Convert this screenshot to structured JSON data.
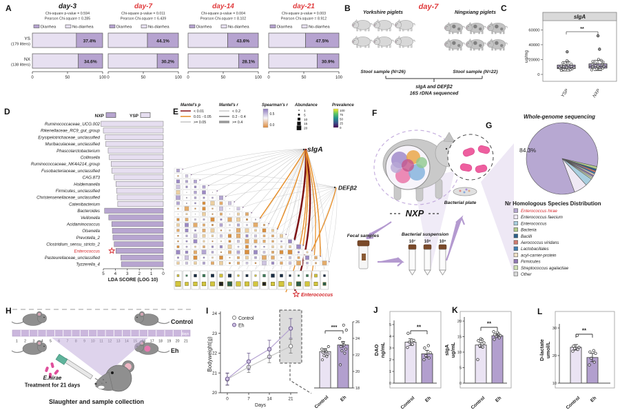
{
  "panel_labels": [
    "A",
    "B",
    "C",
    "D",
    "E",
    "F",
    "G",
    "H",
    "I",
    "J",
    "K",
    "L"
  ],
  "panel_b": {
    "title": "day-7",
    "left_group": "Yorkshire piglets",
    "right_group": "Ningxiang piglets",
    "left_sample": "Stool sample (N=26)",
    "right_sample": "Stool sample (N=22)",
    "assay_line1": "sIgA and DEFβ2",
    "assay_line2": "16S rDNA sequenced"
  },
  "panel_f": {
    "group_label": "NXP",
    "fecal_label": "Fecal samples",
    "suspension_label": "Bacterial suspension",
    "dilutions": [
      "10⁷",
      "10⁸",
      "10⁹"
    ],
    "plate_label": "Bacterial plate"
  },
  "panel_h": {
    "top_group": "Control",
    "bottom_group": "Eh",
    "days_label": "days",
    "day_numbers": [
      "1",
      "2",
      "3",
      "4",
      "5",
      "6",
      "7",
      "8",
      "9",
      "10",
      "11",
      "12",
      "13",
      "14",
      "15",
      "16",
      "17",
      "18",
      "19",
      "20",
      "21"
    ],
    "treatment_name": "E.hirae",
    "treatment_text": "Treatment for 21 days",
    "caption": "Slaughter and sample collection"
  },
  "chart_data": [
    {
      "panel": "A",
      "type": "bar",
      "subtype": "stacked_percent_horizontal",
      "legend": [
        "Diarrhea",
        "No-diarrhea"
      ],
      "colors": {
        "diarrhea": "#b6a3d0",
        "no_diarrhea": "#e7e0f1"
      },
      "row_labels": [
        [
          "YS",
          "(179 litters)"
        ],
        [
          "NX",
          "(138 litters)"
        ]
      ],
      "x_ticks": [
        "0",
        "50",
        "100"
      ],
      "charts": [
        {
          "title": "day-3",
          "title_color": "#1a1a1a",
          "stats": [
            "Chi-square p-value = 0.594",
            "Pearson Chi-square = 0.285"
          ],
          "diarrhea_pct": [
            37.4,
            34.6
          ],
          "labels": [
            "37.4%",
            "34.6%"
          ]
        },
        {
          "title": "day-7",
          "title_color": "#e03a3c",
          "stats": [
            "Chi-square p-value = 0.011",
            "Pearson Chi-square = 6.439"
          ],
          "diarrhea_pct": [
            44.1,
            30.2
          ],
          "labels": [
            "44.1%",
            "30.2%"
          ]
        },
        {
          "title": "day-14",
          "title_color": "#e03a3c",
          "stats": [
            "Chi-square p-value = 0.004",
            "Pearson Chi-square = 8.102"
          ],
          "diarrhea_pct": [
            43.6,
            28.1
          ],
          "labels": [
            "43.6%",
            "28.1%"
          ]
        },
        {
          "title": "day-21",
          "title_color": "#e03a3c",
          "stats": [
            "Chi-square p-value = 0.003",
            "Pearson Chi-square = 8.912"
          ],
          "diarrhea_pct": [
            47.5,
            30.9
          ],
          "labels": [
            "47.5%",
            "30.9%"
          ]
        }
      ]
    },
    {
      "panel": "C",
      "type": "box",
      "title": "sIgA",
      "ylabel": "ug/mg",
      "yticks": [
        0,
        20000,
        40000,
        60000
      ],
      "ylim": [
        0,
        65000
      ],
      "categories": [
        "YSP",
        "NXP"
      ],
      "significance": "**",
      "box_color": "#b3a2ce",
      "boxes": [
        {
          "lo": 4600,
          "q1": 7800,
          "median": 9600,
          "q3": 12600,
          "hi": 17000,
          "outliers": [
            30500
          ],
          "points": [
            5500,
            6500,
            7000,
            7500,
            8000,
            8200,
            8600,
            9000,
            9300,
            9800,
            10200,
            10800,
            11500,
            12500,
            13000,
            14000,
            15500,
            17000,
            18500
          ]
        },
        {
          "lo": 5200,
          "q1": 8600,
          "median": 11000,
          "q3": 14200,
          "hi": 19000,
          "outliers": [
            34000,
            52000
          ],
          "points": [
            6000,
            7000,
            7800,
            8300,
            8800,
            9200,
            9700,
            10300,
            10800,
            11300,
            12000,
            12800,
            13500,
            14500,
            15500,
            16500,
            17500,
            19000,
            20500
          ]
        }
      ]
    },
    {
      "panel": "D",
      "type": "bar",
      "orientation": "horizontal_reversed",
      "xlabel": "LDA SCORE (LOG 10)",
      "xticks": [
        "5",
        "4",
        "3",
        "2",
        "1",
        "0"
      ],
      "legend": [
        {
          "label": "NXP",
          "color": "#b7a5d0"
        },
        {
          "label": "YSP",
          "color": "#e6def0"
        }
      ],
      "highlight_color": "#d4262a",
      "items": [
        [
          "Ruminococcaceae_UCG.002",
          "YSP",
          5.2
        ],
        [
          "Rikenellaceae_RC9_gut_group",
          "YSP",
          5.0
        ],
        [
          "Erysipelotrichaceae_unclassified",
          "YSP",
          4.85
        ],
        [
          "Muribaculaceae_unclassified",
          "YSP",
          4.8
        ],
        [
          "Phascolarctobacterium",
          "YSP",
          4.6
        ],
        [
          "Collinsella",
          "YSP",
          4.5
        ],
        [
          "Ruminococcaceae_NK4A214_group",
          "YSP",
          4.35
        ],
        [
          "Fusobacteriaceae_unclassified",
          "YSP",
          4.3
        ],
        [
          "CAG.873",
          "YSP",
          4.1
        ],
        [
          "Holdemanella",
          "YSP",
          3.95
        ],
        [
          "Firmicutes_unclassified",
          "YSP",
          3.9
        ],
        [
          "Christensenellaceae_unclassified",
          "YSP",
          3.85
        ],
        [
          "Catenibacterium",
          "YSP",
          3.8
        ],
        [
          "Bacteroides",
          "NXP",
          4.9
        ],
        [
          "Veillonella",
          "NXP",
          4.55
        ],
        [
          "Acidaminococcus",
          "NXP",
          4.3
        ],
        [
          "Olsenella",
          "NXP",
          4.25
        ],
        [
          "Prevotella_2",
          "NXP",
          4.2
        ],
        [
          "Clostridium_sensu_stricto_2",
          "NXP",
          4.1
        ],
        [
          "Enterococcus",
          "NXP",
          3.95,
          true
        ],
        [
          "Pasteurellaceae_unclassified",
          "NXP",
          3.55
        ],
        [
          "Tyzzerella_4",
          "NXP",
          3.5
        ]
      ]
    },
    {
      "panel": "E",
      "type": "heatmap_network",
      "n_rows": 18,
      "seed": 11,
      "nodes": [
        {
          "label": "sIgA"
        },
        {
          "label": "DEFβ2"
        }
      ],
      "star_label": "Enterococcus",
      "legend": {
        "mantel_p": {
          "title": "Mantel's p",
          "items": [
            {
              "label": "< 0.01",
              "color": "#8e1b1e"
            },
            {
              "label": "0.01 - 0.05",
              "color": "#e8912d"
            },
            {
              "label": ">= 0.05",
              "color": "#c8c8c8"
            }
          ]
        },
        "mantel_r": {
          "title": "Mantel's r",
          "items": [
            {
              "label": "< 0.2",
              "width": 0.8
            },
            {
              "label": "0.2 - 0.4",
              "width": 2
            },
            {
              "label": ">= 0.4",
              "width": 3.6
            }
          ]
        },
        "spearman": {
          "title": "Spearman's r",
          "ticks": [
            "0.5",
            "0.0"
          ],
          "colors": [
            "#8f7cbf",
            "#f7f5f9",
            "#dd8a3c"
          ]
        },
        "abundance": {
          "title": "Abundance",
          "ticks": [
            "1",
            "5",
            "10",
            "15",
            "20"
          ]
        },
        "prevalence": {
          "title": "Prevalence",
          "ticks": [
            "100",
            "75",
            "50",
            "25",
            "0"
          ],
          "colors": [
            "#fde725",
            "#5ec962",
            "#21918c",
            "#3b528b",
            "#440154"
          ]
        }
      },
      "cell_colors": {
        "positive": [
          "#9b89c4",
          "#b3a5d2",
          "#cdc3e0"
        ],
        "negative": [
          "#d98f3e",
          "#e3ab6a",
          "#eccfa0"
        ]
      }
    },
    {
      "panel": "G",
      "type": "pie",
      "title": "Whole-genome sequencing",
      "legend_title": "Nr Homologous Species Distribution",
      "main_label": "84.3%",
      "slices": [
        {
          "label": "Enterococcus hirae",
          "value": 84.3,
          "color": "#b7a8d2",
          "label_color": "#d4262a"
        },
        {
          "label": "Enterococcus faecium",
          "value": 6.0,
          "color": "#efe9f4",
          "label_color": "#1a1a1a"
        },
        {
          "label": "Enterococcus",
          "value": 3.5,
          "color": "#a9cfdf",
          "label_color": "#1a1a1a"
        },
        {
          "label": "Bacteria",
          "value": 1.2,
          "color": "#b3cc8b",
          "label_color": "#1a1a1a"
        },
        {
          "label": "Bacilli",
          "value": 0.8,
          "color": "#2c5f8a",
          "label_color": "#1a1a1a"
        },
        {
          "label": "Aerococcus viridans",
          "value": 0.8,
          "color": "#cf7a70",
          "label_color": "#1a1a1a"
        },
        {
          "label": "Lactobacillales",
          "value": 0.7,
          "color": "#3f7fb5",
          "label_color": "#1a1a1a"
        },
        {
          "label": "acyl-carrier-protein",
          "value": 0.7,
          "color": "#f2e3c8",
          "label_color": "#1a1a1a"
        },
        {
          "label": "Firmicutes",
          "value": 0.7,
          "color": "#9279b6",
          "label_color": "#1a1a1a"
        },
        {
          "label": "Streptococcus agalactiae",
          "value": 0.7,
          "color": "#cfe0b2",
          "label_color": "#1a1a1a"
        },
        {
          "label": "Other",
          "value": 0.6,
          "color": "#d8d8d8",
          "label_color": "#1a1a1a"
        }
      ]
    },
    {
      "panel": "I",
      "type": "line",
      "ylabel": "Bodyweight(g)",
      "xlabel": "Days",
      "yticks": [
        20,
        21,
        22,
        23,
        24
      ],
      "x": [
        0,
        7,
        14,
        21
      ],
      "series": [
        {
          "name": "Control",
          "values": [
            20.68,
            21.3,
            21.82,
            22.35
          ],
          "err": [
            0.3,
            0.28,
            0.3,
            0.35
          ],
          "color": "#c4c4c4",
          "marker_fill": "#ffffff",
          "marker_stroke": "#777777"
        },
        {
          "name": "Eh",
          "values": [
            20.7,
            21.58,
            22.2,
            23.25
          ],
          "err": [
            0.3,
            0.42,
            0.45,
            0.5
          ],
          "color": "#b4a1d1",
          "marker_fill": "#cfc0e3",
          "marker_stroke": "#6b5a8e"
        }
      ],
      "inset": {
        "yticks": [
          18,
          20,
          22,
          24,
          26
        ],
        "categories": [
          "Control",
          "Eh"
        ],
        "values": [
          22.4,
          23.2
        ],
        "err": [
          0.35,
          0.4
        ],
        "significance": "***",
        "dots": [
          [
            21.4,
            21.8,
            21.9,
            22.1,
            22.3,
            22.4,
            22.6,
            22.7,
            23.0
          ],
          [
            20.8,
            22.2,
            22.5,
            22.7,
            23.0,
            23.2,
            23.5,
            24.0,
            25.0,
            25.6
          ]
        ]
      }
    },
    {
      "panel": "J",
      "type": "bar",
      "ylabel_lines": [
        "DAO",
        "ng/mL"
      ],
      "yticks": [
        0,
        1,
        2,
        3,
        4,
        5
      ],
      "ylim": [
        0,
        5
      ],
      "categories": [
        "Control",
        "Eh"
      ],
      "values": [
        3.5,
        2.5
      ],
      "err": [
        0.28,
        0.3
      ],
      "significance": "**",
      "dots": [
        [
          3.05,
          3.3,
          3.5,
          3.65,
          4.25
        ],
        [
          2.0,
          2.15,
          2.35,
          2.6,
          3.0,
          3.2
        ]
      ]
    },
    {
      "panel": "K",
      "type": "bar",
      "ylabel_lines": [
        "sIgA",
        "ug/mL"
      ],
      "yticks": [
        0,
        5,
        10,
        15,
        20
      ],
      "ylim": [
        0,
        20
      ],
      "categories": [
        "Control",
        "Eh"
      ],
      "values": [
        12.3,
        15.3
      ],
      "err": [
        0.8,
        0.5
      ],
      "significance": "**",
      "dots": [
        [
          7.6,
          11.6,
          12.1,
          13.0,
          13.7,
          14.0,
          14.3
        ],
        [
          14.1,
          14.6,
          15.0,
          15.3,
          15.6,
          15.9,
          16.3,
          16.6
        ]
      ]
    },
    {
      "panel": "L",
      "type": "bar",
      "ylabel_lines": [
        "D-lactate",
        "umol/L"
      ],
      "yticks": [
        10,
        20,
        30
      ],
      "ylim": [
        10,
        30
      ],
      "categories": [
        "Control",
        "Eh"
      ],
      "values": [
        23,
        19.3
      ],
      "err": [
        1.0,
        1.5
      ],
      "significance": "**",
      "dots": [
        [
          21.6,
          22.2,
          22.6,
          23.0,
          23.4,
          27.3
        ],
        [
          16.6,
          17.6,
          19.0,
          20.8,
          21.3,
          21.8
        ]
      ]
    }
  ],
  "bar_colors": {
    "control": "#eae3f3",
    "eh": "#b29fce"
  }
}
